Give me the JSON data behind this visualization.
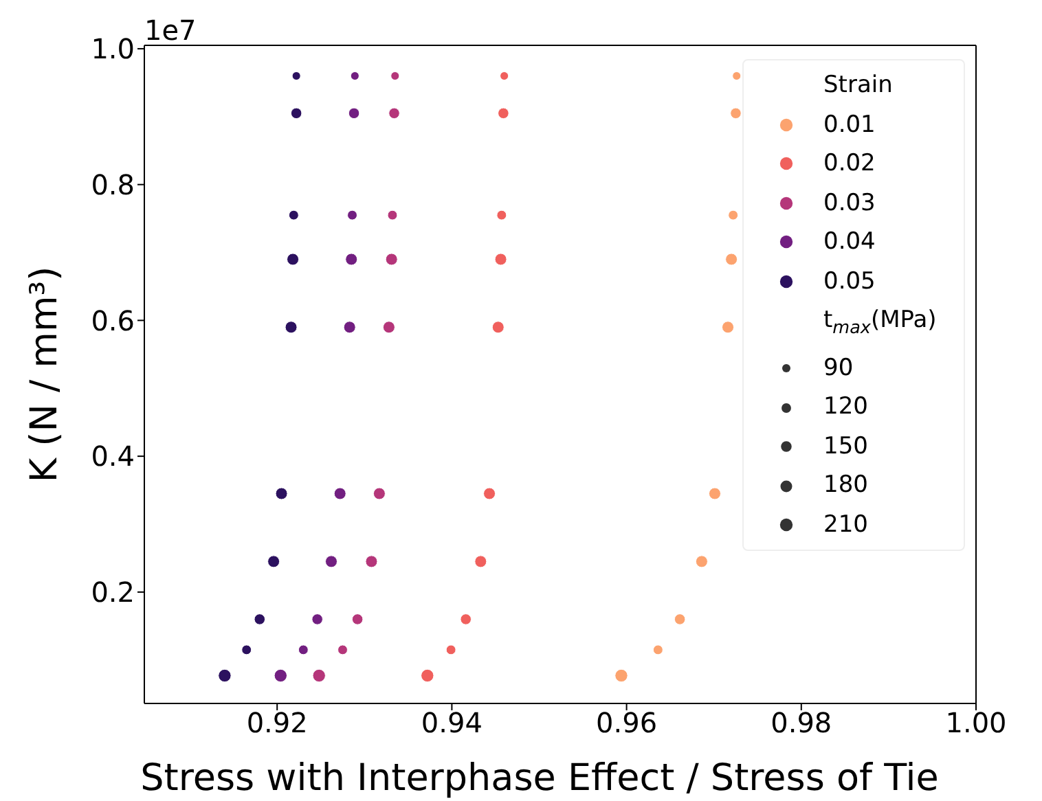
{
  "chart_data": {
    "type": "bubble",
    "xlabel": "Stress with Interphase Effect / Stress of Tie",
    "ylabel": "K (N / mm³)",
    "legend_title": "Strain",
    "annotations": [
      "1e7",
      "t$_{max}$(MPa)"
    ],
    "xlim": [
      0.9048,
      1.0
    ],
    "xticks": [
      0.92,
      0.94,
      0.96,
      0.98,
      {
        "value": 1.0,
        "label": "1.00"
      }
    ],
    "ylim": [
      0.036,
      1.005
    ],
    "yticks": [
      0.2,
      0.4,
      0.6,
      0.8,
      {
        "value": 1.0,
        "label": "1.0"
      }
    ],
    "grid": false,
    "legend": "top right",
    "marker": "circle",
    "size_legend": [
      90,
      120,
      150,
      180,
      210
    ],
    "series": [
      {
        "name": "0.01",
        "color": "#fca36f",
        "x": [
          0.9726,
          0.9725,
          0.9722,
          0.972,
          0.9716,
          0.9701,
          0.9686,
          0.9661,
          0.9636,
          0.9594
        ],
        "values": [
          0.96,
          0.905,
          0.755,
          0.69,
          0.59,
          0.345,
          0.245,
          0.16,
          0.115,
          0.077
        ],
        "sizes": [
          90,
          150,
          120,
          180,
          180,
          180,
          180,
          150,
          120,
          210
        ]
      },
      {
        "name": "0.02",
        "color": "#f0605d",
        "x": [
          0.946,
          0.9459,
          0.9457,
          0.9456,
          0.9453,
          0.9443,
          0.9433,
          0.9416,
          0.9399,
          0.9372
        ],
        "values": [
          0.96,
          0.905,
          0.755,
          0.69,
          0.59,
          0.345,
          0.245,
          0.16,
          0.115,
          0.077
        ],
        "sizes": [
          90,
          150,
          120,
          180,
          180,
          180,
          180,
          150,
          120,
          210
        ]
      },
      {
        "name": "0.03",
        "color": "#b5367a",
        "x": [
          0.9335,
          0.9334,
          0.9332,
          0.9331,
          0.9328,
          0.9317,
          0.9308,
          0.9292,
          0.9275,
          0.9248
        ],
        "values": [
          0.96,
          0.905,
          0.755,
          0.69,
          0.59,
          0.345,
          0.245,
          0.16,
          0.115,
          0.077
        ],
        "sizes": [
          90,
          150,
          120,
          180,
          180,
          180,
          180,
          150,
          120,
          210
        ]
      },
      {
        "name": "0.04",
        "color": "#721f81",
        "x": [
          0.9289,
          0.9288,
          0.9286,
          0.9285,
          0.9283,
          0.9272,
          0.9262,
          0.9246,
          0.923,
          0.9204
        ],
        "values": [
          0.96,
          0.905,
          0.755,
          0.69,
          0.59,
          0.345,
          0.245,
          0.16,
          0.115,
          0.077
        ],
        "sizes": [
          90,
          150,
          120,
          180,
          180,
          180,
          180,
          150,
          120,
          210
        ]
      },
      {
        "name": "0.05",
        "color": "#2c115f",
        "x": [
          0.9222,
          0.9222,
          0.9219,
          0.9218,
          0.9216,
          0.9205,
          0.9196,
          0.918,
          0.9165,
          0.914
        ],
        "values": [
          0.96,
          0.905,
          0.755,
          0.69,
          0.59,
          0.345,
          0.245,
          0.16,
          0.115,
          0.077
        ],
        "sizes": [
          90,
          150,
          120,
          180,
          180,
          180,
          180,
          150,
          120,
          210
        ]
      }
    ]
  }
}
